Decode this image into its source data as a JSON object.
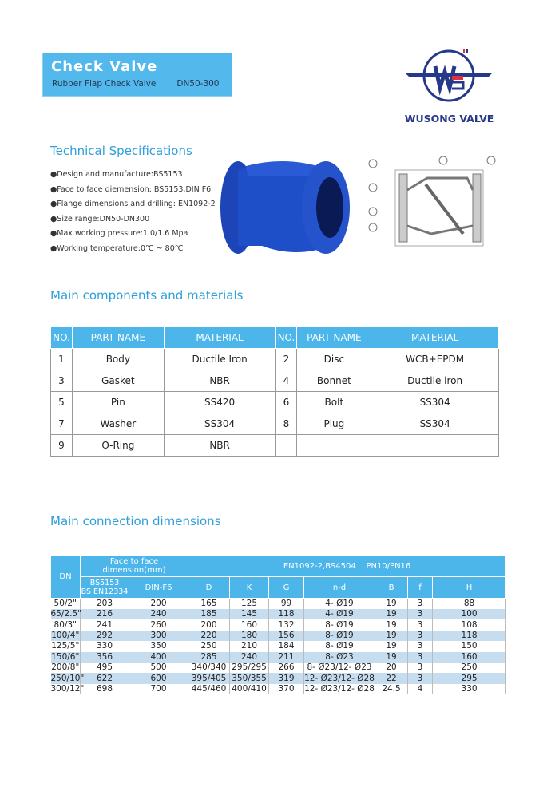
{
  "header": {
    "title": "Check Valve",
    "subtitle": "Rubber Flap Check Valve",
    "range": "DN50-300",
    "logo_text": "WUSONG VALVE",
    "brand_color": "#26388a",
    "accent": "#4cb6ea"
  },
  "specs": {
    "heading": "Technical Specifications",
    "items": [
      "●Design and manufacture:BS5153",
      "●Face to face diemension: BS5153,DIN F6",
      "●Flange dimensions and drilling: EN1092-2",
      "●Size range:DN50-DN300",
      "●Max.working pressure:1.0/1.6 Mpa",
      "●Working temperature:0℃ ~ 80℃"
    ]
  },
  "components": {
    "heading": "Main components and materials",
    "headers": [
      "NO.",
      "PART NAME",
      "MATERIAL",
      "NO.",
      "PART NAME",
      "MATERIAL"
    ],
    "rows": [
      [
        "1",
        "Body",
        "Ductile Iron",
        "2",
        "Disc",
        "WCB+EPDM"
      ],
      [
        "3",
        "Gasket",
        "NBR",
        "4",
        "Bonnet",
        "Ductile iron"
      ],
      [
        "5",
        "Pin",
        "SS420",
        "6",
        "Bolt",
        "SS304"
      ],
      [
        "7",
        "Washer",
        "SS304",
        "8",
        "Plug",
        "SS304"
      ],
      [
        "9",
        "O-Ring",
        "NBR",
        "",
        "",
        ""
      ]
    ]
  },
  "dimensions": {
    "heading": "Main connection dimensions",
    "dn": "DN",
    "f2f": "Face to face dimension(mm)",
    "std": "EN1092-2,BS4504    PN10/PN16",
    "bs": "BS5153\nBS EN12334",
    "din": "DIN-F6",
    "cols": [
      "D",
      "K",
      "G",
      "n-d",
      "B",
      "f",
      "H"
    ],
    "rows": [
      [
        "50/2\"",
        "203",
        "200",
        "165",
        "125",
        "99",
        "4- Ø19",
        "19",
        "3",
        "88"
      ],
      [
        "65/2.5\"",
        "216",
        "240",
        "185",
        "145",
        "118",
        "4- Ø19",
        "19",
        "3",
        "100"
      ],
      [
        "80/3\"",
        "241",
        "260",
        "200",
        "160",
        "132",
        "8- Ø19",
        "19",
        "3",
        "108"
      ],
      [
        "100/4\"",
        "292",
        "300",
        "220",
        "180",
        "156",
        "8- Ø19",
        "19",
        "3",
        "118"
      ],
      [
        "125/5\"",
        "330",
        "350",
        "250",
        "210",
        "184",
        "8- Ø19",
        "19",
        "3",
        "150"
      ],
      [
        "150/6\"",
        "356",
        "400",
        "285",
        "240",
        "211",
        "8- Ø23",
        "19",
        "3",
        "160"
      ],
      [
        "200/8\"",
        "495",
        "500",
        "340/340",
        "295/295",
        "266",
        "8- Ø23/12- Ø23",
        "20",
        "3",
        "250"
      ],
      [
        "250/10\"",
        "622",
        "600",
        "395/405",
        "350/355",
        "319",
        "12- Ø23/12- Ø28",
        "22",
        "3",
        "295"
      ],
      [
        "300/12\"",
        "698",
        "700",
        "445/460",
        "400/410",
        "370",
        "12- Ø23/12- Ø28",
        "24.5",
        "4",
        "330"
      ]
    ]
  }
}
